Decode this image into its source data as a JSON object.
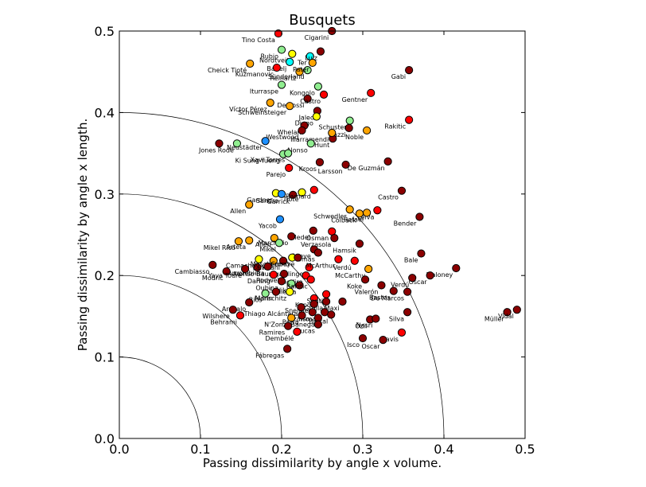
{
  "chart_data": {
    "type": "scatter",
    "title": "Busquets",
    "xlabel": "Passing dissimilarity by angle x volume.",
    "ylabel": "Passing dissimilarity by angle x length.",
    "xlim": [
      0.0,
      0.5
    ],
    "ylim": [
      0.0,
      0.5
    ],
    "x_ticks": [
      "0.0",
      "0.1",
      "0.2",
      "0.3",
      "0.4",
      "0.5"
    ],
    "y_ticks": [
      "0.0",
      "0.1",
      "0.2",
      "0.3",
      "0.4",
      "0.5"
    ],
    "grid": false,
    "reference_arcs": [
      0.1,
      0.2,
      0.3,
      0.4
    ],
    "colors": {
      "darkred": "#8b0000",
      "red": "#ff0000",
      "orange": "#ffa500",
      "yellow": "#ffff00",
      "lightgreen": "#90ee90",
      "cyan": "#00ffff",
      "blue": "#1e90ff"
    },
    "points": [
      {
        "label": "Tino Costa",
        "x": 0.196,
        "y": 0.497,
        "color": "red"
      },
      {
        "label": "Cigarini",
        "x": 0.262,
        "y": 0.5,
        "color": "darkred"
      },
      {
        "label": "Rubio",
        "x": 0.2,
        "y": 0.477,
        "color": "lightgreen"
      },
      {
        "label": "Nordtveit",
        "x": 0.213,
        "y": 0.472,
        "color": "yellow"
      },
      {
        "label": "Cheick Tioté",
        "x": 0.161,
        "y": 0.46,
        "color": "orange"
      },
      {
        "label": "Badelj",
        "x": 0.21,
        "y": 0.462,
        "color": "cyan"
      },
      {
        "label": "Ter",
        "x": 0.235,
        "y": 0.469,
        "color": "cyan"
      },
      {
        "label": "Luiz",
        "x": 0.248,
        "y": 0.475,
        "color": "darkred"
      },
      {
        "label": "Kuzmanovic",
        "x": 0.194,
        "y": 0.455,
        "color": "red"
      },
      {
        "label": "Reinartz",
        "x": 0.222,
        "y": 0.45,
        "color": "orange"
      },
      {
        "label": "Sünderland",
        "x": 0.232,
        "y": 0.452,
        "color": "lightgreen"
      },
      {
        "label": "Pater",
        "x": 0.238,
        "y": 0.461,
        "color": "orange"
      },
      {
        "label": "Gabi",
        "x": 0.357,
        "y": 0.452,
        "color": "darkred"
      },
      {
        "label": "Iturraspe",
        "x": 0.2,
        "y": 0.434,
        "color": "lightgreen"
      },
      {
        "label": "Gentner",
        "x": 0.31,
        "y": 0.424,
        "color": "red"
      },
      {
        "label": "Víctor Pérez",
        "x": 0.186,
        "y": 0.412,
        "color": "orange"
      },
      {
        "label": "De Rossi",
        "x": 0.232,
        "y": 0.417,
        "color": "darkred"
      },
      {
        "label": "Castro",
        "x": 0.252,
        "y": 0.422,
        "color": "red"
      },
      {
        "label": "Schweinsteiger",
        "x": 0.21,
        "y": 0.408,
        "color": "orange"
      },
      {
        "label": "Jaleo",
        "x": 0.244,
        "y": 0.402,
        "color": "darkred"
      },
      {
        "label": "Kongolo",
        "x": 0.245,
        "y": 0.432,
        "color": "lightgreen"
      },
      {
        "label": "Diego",
        "x": 0.243,
        "y": 0.395,
        "color": "yellow"
      },
      {
        "label": "Rakitic",
        "x": 0.357,
        "y": 0.391,
        "color": "red"
      },
      {
        "label": "Schuster",
        "x": 0.284,
        "y": 0.39,
        "color": "lightgreen"
      },
      {
        "label": "Noble",
        "x": 0.305,
        "y": 0.378,
        "color": "orange"
      },
      {
        "label": "Whelan",
        "x": 0.228,
        "y": 0.384,
        "color": "darkred"
      },
      {
        "label": "Westwood",
        "x": 0.225,
        "y": 0.378,
        "color": "darkred"
      },
      {
        "label": "Gazzi",
        "x": 0.283,
        "y": 0.381,
        "color": "darkred"
      },
      {
        "label": "Hunt",
        "x": 0.263,
        "y": 0.368,
        "color": "darkred"
      },
      {
        "label": "Illarramendi",
        "x": 0.262,
        "y": 0.375,
        "color": "orange"
      },
      {
        "label": "Jones",
        "x": 0.123,
        "y": 0.362,
        "color": "darkred"
      },
      {
        "label": "Rode",
        "x": 0.145,
        "y": 0.362,
        "color": "lightgreen"
      },
      {
        "label": "Neustädter",
        "x": 0.18,
        "y": 0.365,
        "color": "blue"
      },
      {
        "label": "Alonso",
        "x": 0.236,
        "y": 0.362,
        "color": "lightgreen"
      },
      {
        "label": "Ki Sung-Yueng",
        "x": 0.202,
        "y": 0.349,
        "color": "lightgreen"
      },
      {
        "label": "Xavi Torres",
        "x": 0.208,
        "y": 0.35,
        "color": "lightgreen"
      },
      {
        "label": "Kroos",
        "x": 0.247,
        "y": 0.339,
        "color": "darkred"
      },
      {
        "label": "Larsson",
        "x": 0.279,
        "y": 0.336,
        "color": "darkred"
      },
      {
        "label": "De Guzmán",
        "x": 0.331,
        "y": 0.34,
        "color": "darkred"
      },
      {
        "label": "Parejo",
        "x": 0.209,
        "y": 0.332,
        "color": "red"
      },
      {
        "label": "Castro",
        "x": 0.348,
        "y": 0.304,
        "color": "darkred"
      },
      {
        "label": "Gardner",
        "x": 0.193,
        "y": 0.301,
        "color": "yellow"
      },
      {
        "label": "Sandro",
        "x": 0.2,
        "y": 0.3,
        "color": "blue"
      },
      {
        "label": "Garrick",
        "x": 0.214,
        "y": 0.299,
        "color": "darkred"
      },
      {
        "label": "Tiote",
        "x": 0.225,
        "y": 0.302,
        "color": "yellow"
      },
      {
        "label": "Barnard",
        "x": 0.24,
        "y": 0.305,
        "color": "red"
      },
      {
        "label": "Allen",
        "x": 0.16,
        "y": 0.287,
        "color": "orange"
      },
      {
        "label": "Schwedler",
        "x": 0.284,
        "y": 0.281,
        "color": "orange"
      },
      {
        "label": "Leiva",
        "x": 0.318,
        "y": 0.28,
        "color": "red"
      },
      {
        "label": "Colback",
        "x": 0.296,
        "y": 0.276,
        "color": "orange"
      },
      {
        "label": "Rafael",
        "x": 0.305,
        "y": 0.277,
        "color": "orange"
      },
      {
        "label": "Bender",
        "x": 0.37,
        "y": 0.272,
        "color": "darkred"
      },
      {
        "label": "Yacob",
        "x": 0.198,
        "y": 0.269,
        "color": "blue"
      },
      {
        "label": "Medel",
        "x": 0.239,
        "y": 0.255,
        "color": "darkred"
      },
      {
        "label": "Osman",
        "x": 0.262,
        "y": 0.254,
        "color": "red"
      },
      {
        "label": "Mikel Rico",
        "x": 0.147,
        "y": 0.242,
        "color": "orange"
      },
      {
        "label": "Arteta",
        "x": 0.16,
        "y": 0.243,
        "color": "orange"
      },
      {
        "label": "Allen",
        "x": 0.191,
        "y": 0.246,
        "color": "orange"
      },
      {
        "label": "Marchisio",
        "x": 0.212,
        "y": 0.248,
        "color": "darkred"
      },
      {
        "label": "Verzasola",
        "x": 0.265,
        "y": 0.246,
        "color": "darkred"
      },
      {
        "label": "Hamsik",
        "x": 0.296,
        "y": 0.239,
        "color": "darkred"
      },
      {
        "label": "Mikel",
        "x": 0.197,
        "y": 0.24,
        "color": "lightgreen"
      },
      {
        "label": "Bale",
        "x": 0.372,
        "y": 0.227,
        "color": "darkred"
      },
      {
        "label": "Gueye",
        "x": 0.24,
        "y": 0.232,
        "color": "darkred"
      },
      {
        "label": "Tomas",
        "x": 0.245,
        "y": 0.228,
        "color": "darkred"
      },
      {
        "label": "Cambiasso",
        "x": 0.115,
        "y": 0.213,
        "color": "darkred"
      },
      {
        "label": "Alonso",
        "x": 0.17,
        "y": 0.21,
        "color": "darkred"
      },
      {
        "label": "Camacho",
        "x": 0.172,
        "y": 0.22,
        "color": "yellow"
      },
      {
        "label": "Lahm",
        "x": 0.19,
        "y": 0.218,
        "color": "orange"
      },
      {
        "label": "Kitani",
        "x": 0.202,
        "y": 0.218,
        "color": "darkred"
      },
      {
        "label": "Mascherano",
        "x": 0.213,
        "y": 0.222,
        "color": "yellow"
      },
      {
        "label": "Cabaye",
        "x": 0.22,
        "y": 0.222,
        "color": "darkred"
      },
      {
        "label": "Amorebieta",
        "x": 0.183,
        "y": 0.211,
        "color": "darkred"
      },
      {
        "label": "Baumgartlinger",
        "x": 0.234,
        "y": 0.21,
        "color": "red"
      },
      {
        "label": "McArthur",
        "x": 0.27,
        "y": 0.22,
        "color": "red"
      },
      {
        "label": "Verdú",
        "x": 0.29,
        "y": 0.218,
        "color": "red"
      },
      {
        "label": "Maloney",
        "x": 0.415,
        "y": 0.209,
        "color": "darkred"
      },
      {
        "label": "Modric",
        "x": 0.132,
        "y": 0.205,
        "color": "darkred"
      },
      {
        "label": "Yaya Touré",
        "x": 0.155,
        "y": 0.208,
        "color": "darkred"
      },
      {
        "label": "Darling",
        "x": 0.19,
        "y": 0.201,
        "color": "red"
      },
      {
        "label": "Rodwell",
        "x": 0.203,
        "y": 0.202,
        "color": "darkred"
      },
      {
        "label": "Khedira",
        "x": 0.23,
        "y": 0.2,
        "color": "red"
      },
      {
        "label": "McCarthy",
        "x": 0.307,
        "y": 0.208,
        "color": "orange"
      },
      {
        "label": "Koke",
        "x": 0.303,
        "y": 0.195,
        "color": "darkred"
      },
      {
        "label": "Óscar",
        "x": 0.383,
        "y": 0.2,
        "color": "darkred"
      },
      {
        "label": "Verdú",
        "x": 0.361,
        "y": 0.197,
        "color": "darkred"
      },
      {
        "label": "Oubina",
        "x": 0.2,
        "y": 0.193,
        "color": "darkred"
      },
      {
        "label": "Sadiki",
        "x": 0.212,
        "y": 0.19,
        "color": "lightgreen"
      },
      {
        "label": "Iniesta",
        "x": 0.222,
        "y": 0.188,
        "color": "darkred"
      },
      {
        "label": "Rakitic",
        "x": 0.236,
        "y": 0.195,
        "color": "red"
      },
      {
        "label": "Valerón",
        "x": 0.323,
        "y": 0.188,
        "color": "darkred"
      },
      {
        "label": "Bastos",
        "x": 0.338,
        "y": 0.181,
        "color": "darkred"
      },
      {
        "label": "De Marcos",
        "x": 0.355,
        "y": 0.18,
        "color": "darkred"
      },
      {
        "label": "Rios",
        "x": 0.18,
        "y": 0.178,
        "color": "lightgreen"
      },
      {
        "label": "Marin",
        "x": 0.193,
        "y": 0.18,
        "color": "darkred"
      },
      {
        "label": "Ivanschitz",
        "x": 0.21,
        "y": 0.18,
        "color": "yellow"
      },
      {
        "label": "Arévalo",
        "x": 0.16,
        "y": 0.167,
        "color": "darkred"
      },
      {
        "label": "Kapo",
        "x": 0.24,
        "y": 0.172,
        "color": "red"
      },
      {
        "label": "Santi",
        "x": 0.255,
        "y": 0.177,
        "color": "red"
      },
      {
        "label": "Sneijder",
        "x": 0.24,
        "y": 0.165,
        "color": "darkred"
      },
      {
        "label": "Grulla",
        "x": 0.255,
        "y": 0.168,
        "color": "darkred"
      },
      {
        "label": "Maxi",
        "x": 0.275,
        "y": 0.168,
        "color": "darkred"
      },
      {
        "label": "Wilshere",
        "x": 0.14,
        "y": 0.158,
        "color": "darkred"
      },
      {
        "label": "Thiago Alcántara",
        "x": 0.224,
        "y": 0.161,
        "color": "darkred"
      },
      {
        "label": "Pizarro",
        "x": 0.238,
        "y": 0.155,
        "color": "darkred"
      },
      {
        "label": "Ismaili",
        "x": 0.253,
        "y": 0.155,
        "color": "darkred"
      },
      {
        "label": "Barral",
        "x": 0.261,
        "y": 0.152,
        "color": "darkred"
      },
      {
        "label": "Silva",
        "x": 0.355,
        "y": 0.155,
        "color": "darkred"
      },
      {
        "label": "Müller",
        "x": 0.478,
        "y": 0.155,
        "color": "darkred"
      },
      {
        "label": "Vidal",
        "x": 0.49,
        "y": 0.158,
        "color": "darkred"
      },
      {
        "label": "Behrami",
        "x": 0.149,
        "y": 0.151,
        "color": "red"
      },
      {
        "label": "N'Zonzi",
        "x": 0.212,
        "y": 0.148,
        "color": "orange"
      },
      {
        "label": "Parra",
        "x": 0.225,
        "y": 0.151,
        "color": "darkred"
      },
      {
        "label": "Banega",
        "x": 0.245,
        "y": 0.148,
        "color": "darkred"
      },
      {
        "label": "Özil",
        "x": 0.309,
        "y": 0.146,
        "color": "darkred"
      },
      {
        "label": "Nasri",
        "x": 0.316,
        "y": 0.147,
        "color": "darkred"
      },
      {
        "label": "Lucas",
        "x": 0.245,
        "y": 0.14,
        "color": "darkred"
      },
      {
        "label": "Dembélé",
        "x": 0.219,
        "y": 0.131,
        "color": "red"
      },
      {
        "label": "Davis",
        "x": 0.348,
        "y": 0.13,
        "color": "red"
      },
      {
        "label": "Ramires",
        "x": 0.208,
        "y": 0.138,
        "color": "darkred"
      },
      {
        "label": "Isco",
        "x": 0.3,
        "y": 0.123,
        "color": "darkred"
      },
      {
        "label": "Oscar",
        "x": 0.325,
        "y": 0.121,
        "color": "darkred"
      },
      {
        "label": "Fábregas",
        "x": 0.207,
        "y": 0.11,
        "color": "darkred"
      }
    ]
  }
}
